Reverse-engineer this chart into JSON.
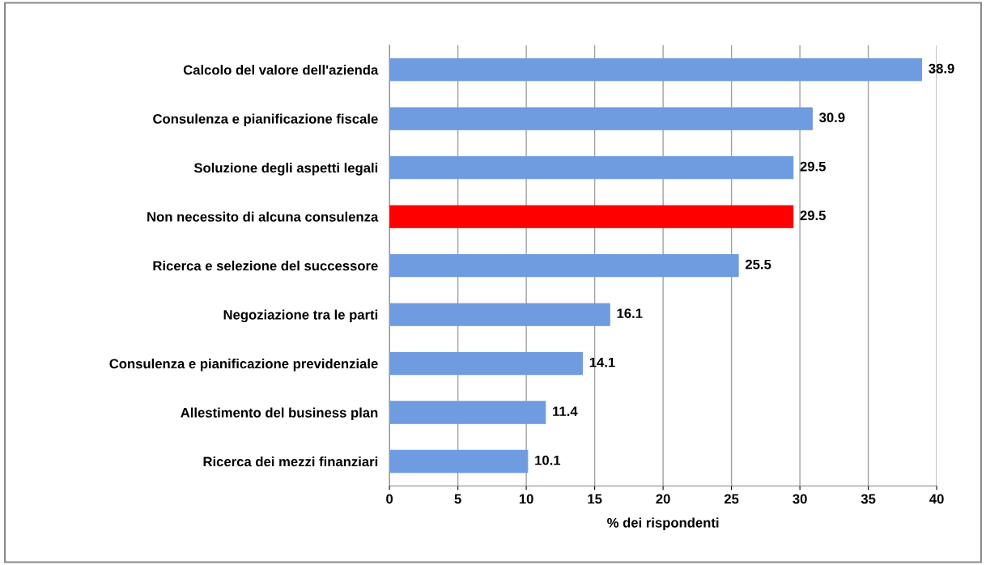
{
  "chart_data": {
    "type": "bar",
    "orientation": "horizontal",
    "xlabel": "% dei rispondenti",
    "categories": [
      "Calcolo del valore dell'azienda",
      "Consulenza e pianificazione fiscale",
      "Soluzione degli aspetti legali",
      "Non necessito di alcuna consulenza",
      "Ricerca e selezione del successore",
      "Negoziazione tra le parti",
      "Consulenza e pianificazione previdenziale",
      "Allestimento del business plan",
      "Ricerca dei mezzi finanziari"
    ],
    "values": [
      38.9,
      30.9,
      29.5,
      29.5,
      25.5,
      16.1,
      14.1,
      11.4,
      10.1
    ],
    "colors": [
      "#6f9be0",
      "#6f9be0",
      "#6f9be0",
      "#ff0000",
      "#6f9be0",
      "#6f9be0",
      "#6f9be0",
      "#6f9be0",
      "#6f9be0"
    ],
    "xlim": [
      0,
      40
    ],
    "xticks": [
      0,
      5,
      10,
      15,
      20,
      25,
      30,
      35,
      40
    ],
    "grid": "x",
    "data_labels": true
  }
}
